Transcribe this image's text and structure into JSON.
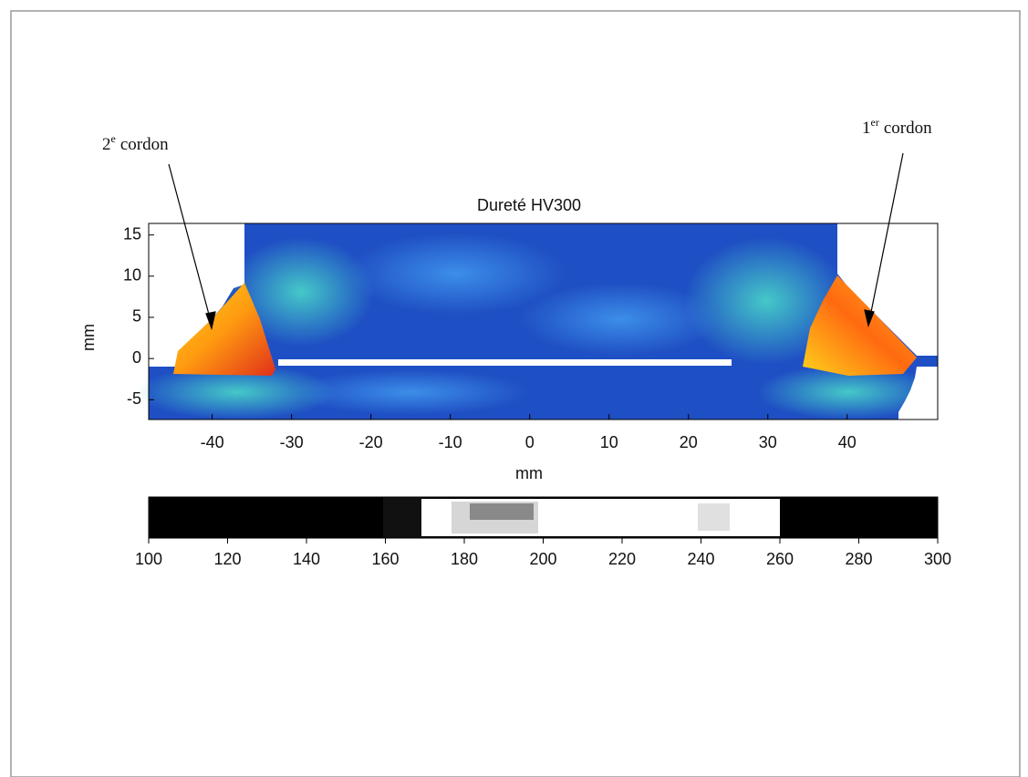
{
  "chart_data": {
    "type": "heatmap",
    "title": "Dureté HV300",
    "x_label": "mm",
    "y_label": "mm",
    "xlim": [
      -48,
      51.4
    ],
    "ylim": [
      -7.4,
      16.4
    ],
    "xticks": [
      -40,
      -30,
      -20,
      -10,
      0,
      10,
      20,
      30,
      40
    ],
    "yticks": [
      -5,
      0,
      5,
      10,
      15
    ],
    "grid": true,
    "colorbar": {
      "clim": [
        100,
        300
      ],
      "ticks": [
        100,
        120,
        140,
        160,
        180,
        200,
        220,
        240,
        260,
        280,
        300
      ]
    },
    "annotations": [
      {
        "base": "2",
        "sup": "e",
        "rest": "cordon"
      },
      {
        "base": "1",
        "sup": "er",
        "rest": "cordon"
      }
    ]
  }
}
